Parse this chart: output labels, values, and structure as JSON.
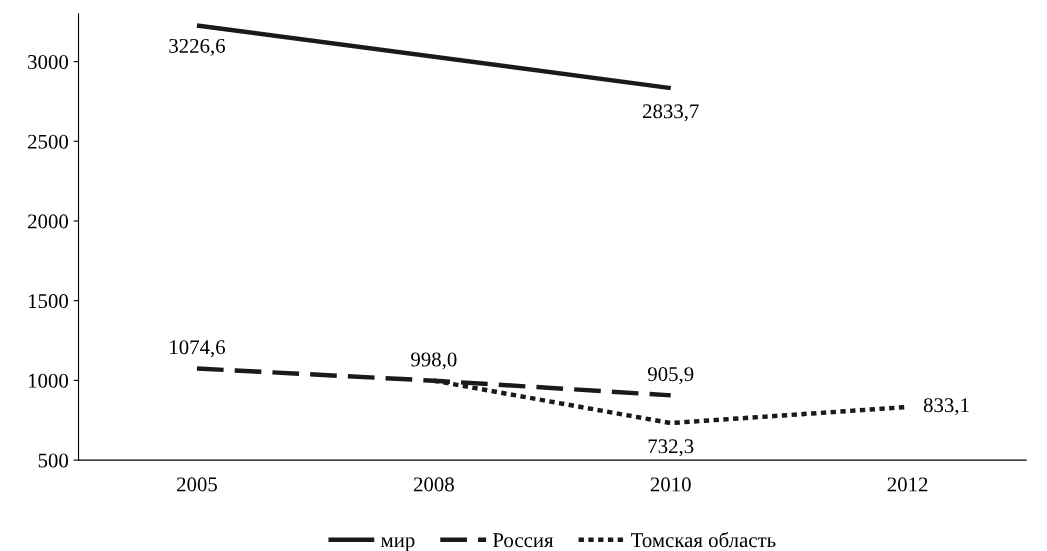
{
  "chart_data": {
    "type": "line",
    "categories": [
      "2005",
      "2008",
      "2010",
      "2012"
    ],
    "series": [
      {
        "name": "мир",
        "color": "#1a1a1a",
        "line_style": "solid",
        "values": [
          3226.6,
          null,
          2833.7,
          null
        ],
        "value_labels": [
          "3226,6",
          null,
          "2833,7",
          null
        ]
      },
      {
        "name": "Россия",
        "color": "#1a1a1a",
        "line_style": "dashed",
        "values": [
          1074.6,
          998.0,
          905.9,
          null
        ],
        "value_labels": [
          "1074,6",
          "998,0",
          "905,9",
          null
        ]
      },
      {
        "name": "Томская область",
        "color": "#1a1a1a",
        "line_style": "dotted",
        "values": [
          null,
          998.0,
          732.3,
          833.1
        ],
        "value_labels": [
          null,
          null,
          "732,3",
          "833,1"
        ]
      }
    ],
    "ylim": [
      500,
      3300
    ],
    "yticks": [
      500,
      1000,
      1500,
      2000,
      2500,
      3000
    ],
    "grid": false,
    "legend": "bottom",
    "marker": "none"
  }
}
